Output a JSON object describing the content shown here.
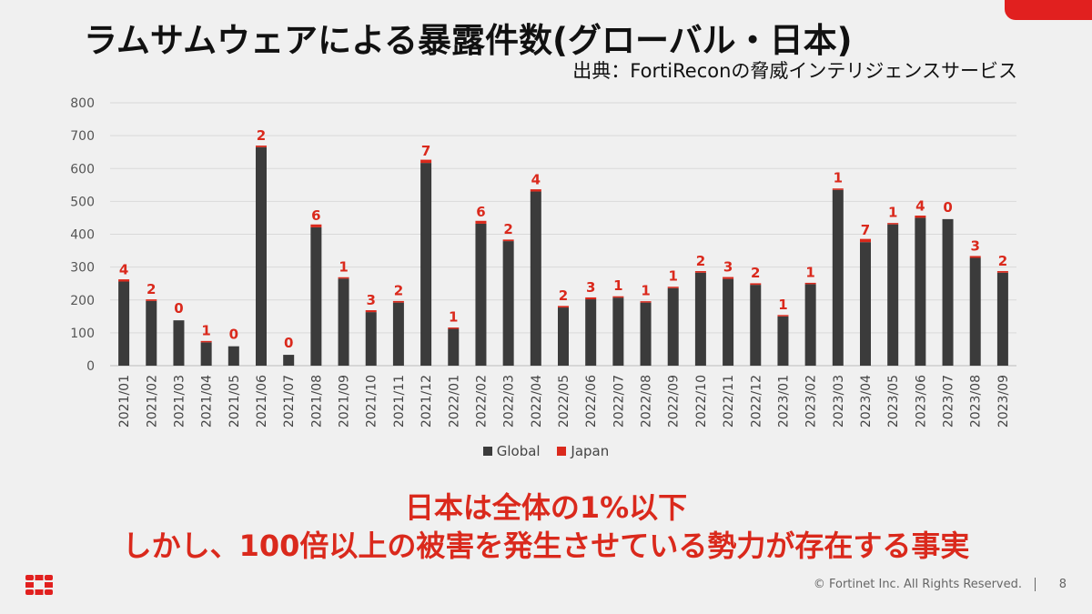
{
  "slide": {
    "title": "ラムサムウェアによる暴露件数(グローバル・日本)",
    "source": "出典：FortiReconの脅威インテリジェンスサービス",
    "message_line1": "日本は全体の1%以下",
    "message_line2": "しかし、100倍以上の被害を発生させている勢力が存在する事実",
    "footer": "© Fortinet Inc. All Rights Reserved.",
    "page_number": "8",
    "accent_color": "#da291c",
    "logo_icon": "fortinet-logo-icon"
  },
  "chart_data": {
    "type": "bar",
    "stacked": true,
    "categories": [
      "2021/01",
      "2021/02",
      "2021/03",
      "2021/04",
      "2021/05",
      "2021/06",
      "2021/07",
      "2021/08",
      "2021/09",
      "2021/10",
      "2021/11",
      "2021/12",
      "2022/01",
      "2022/02",
      "2022/03",
      "2022/04",
      "2022/05",
      "2022/06",
      "2022/07",
      "2022/08",
      "2022/09",
      "2022/10",
      "2022/11",
      "2022/12",
      "2023/01",
      "2023/02",
      "2023/03",
      "2023/04",
      "2023/05",
      "2023/06",
      "2023/07",
      "2023/08",
      "2023/09"
    ],
    "series": [
      {
        "name": "Global",
        "color": "#3b3b3b",
        "values": [
          256,
          197,
          138,
          71,
          59,
          665,
          33,
          421,
          265,
          163,
          192,
          617,
          112,
          432,
          379,
          530,
          177,
          202,
          207,
          192,
          236,
          283,
          264,
          246,
          150,
          248,
          535,
          376,
          430,
          450,
          446,
          328,
          283
        ]
      },
      {
        "name": "Japan",
        "color": "#da291c",
        "values": [
          4,
          2,
          0,
          1,
          0,
          2,
          0,
          6,
          1,
          3,
          2,
          7,
          1,
          6,
          2,
          4,
          2,
          3,
          1,
          1,
          1,
          2,
          3,
          2,
          1,
          1,
          1,
          7,
          1,
          4,
          0,
          3,
          2
        ]
      }
    ],
    "data_labels_series": "Japan",
    "ylim": [
      0,
      800
    ],
    "yticks": [
      0,
      100,
      200,
      300,
      400,
      500,
      600,
      700,
      800
    ],
    "grid": true,
    "legend": "bottom"
  }
}
